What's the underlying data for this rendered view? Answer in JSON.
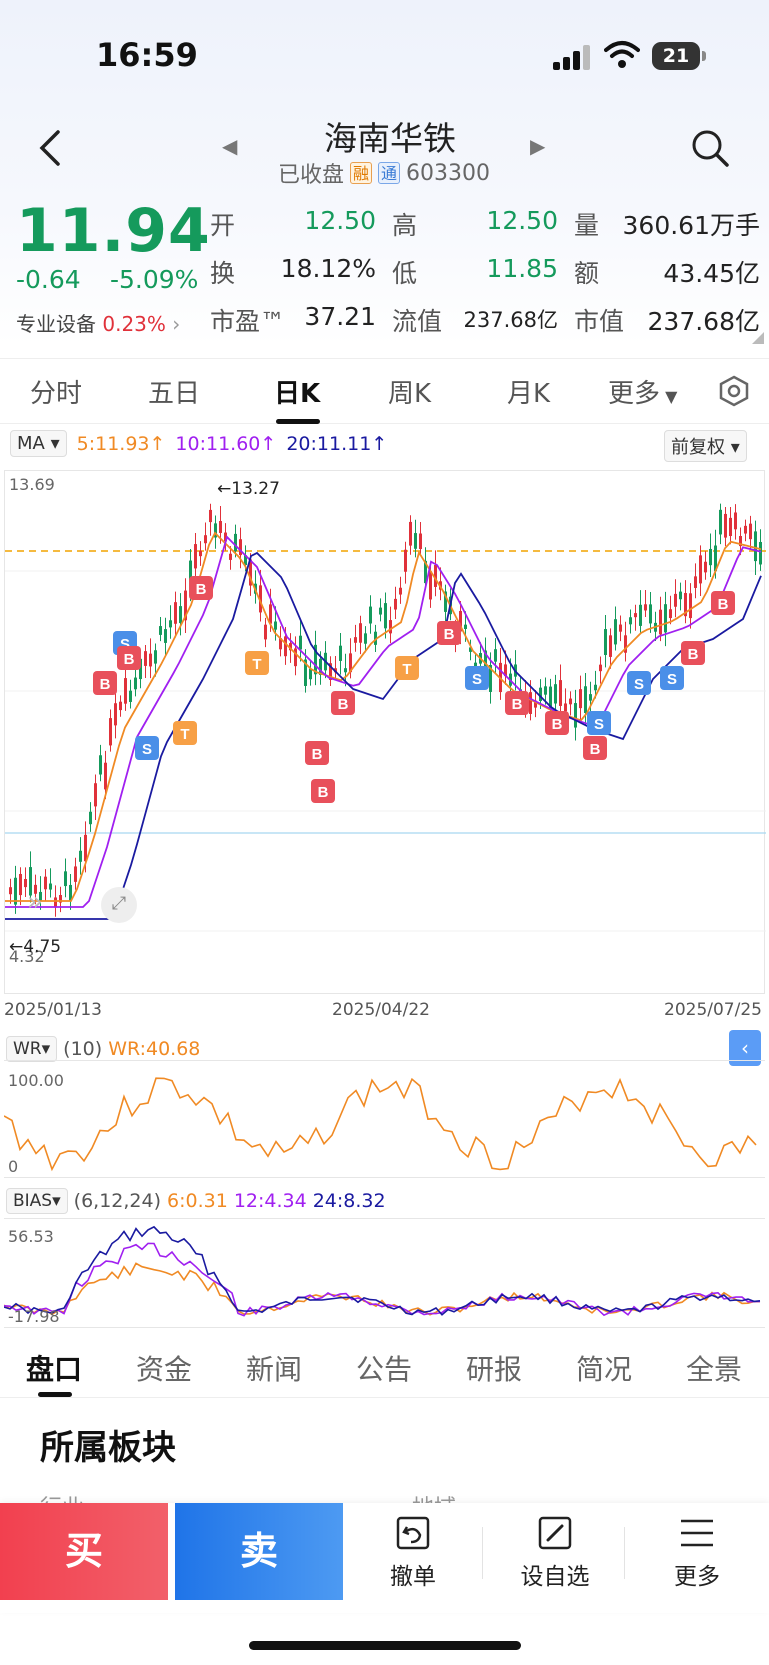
{
  "status_bar": {
    "time": "16:59",
    "battery": "21"
  },
  "header": {
    "stock_name": "海南华铁",
    "status": "已收盘",
    "tag_rong": "融",
    "tag_tong": "通",
    "code": "603300"
  },
  "quote": {
    "price": "11.94",
    "change": "-0.64",
    "change_pct": "-5.09%",
    "sector_label": "专业设备",
    "sector_pct": "0.23%",
    "open_label": "开",
    "open": "12.50",
    "high_label": "高",
    "high": "12.50",
    "volume_label": "量",
    "volume": "360.61万手",
    "turnover_label": "换",
    "turnover": "18.12%",
    "low_label": "低",
    "low": "11.85",
    "amount_label": "额",
    "amount": "43.45亿",
    "pe_label": "市盈™",
    "pe": "37.21",
    "float_label": "流值",
    "float_cap": "237.68亿",
    "mcap_label": "市值",
    "mcap": "237.68亿"
  },
  "chart_tabs": [
    "分时",
    "五日",
    "日K",
    "周K",
    "月K",
    "更多"
  ],
  "ma_legend": {
    "selector": "MA",
    "ma5": "5:11.93",
    "ma10": "10:11.60",
    "ma20": "20:11.11",
    "adjust": "前复权"
  },
  "colors": {
    "up": "#e0313a",
    "down": "#159a5c",
    "ma5": "#f08a24",
    "ma10": "#a020f0",
    "ma20": "#1a1aa0",
    "buy": "#f2404f",
    "sell": "#1f74e8"
  },
  "kline": {
    "ymax_label": "13.69",
    "ymin_label": "4.32",
    "high_marker": "13.27",
    "low_marker": "4.75",
    "dates": [
      "2025/01/13",
      "2025/04/22",
      "2025/07/25"
    ]
  },
  "wr": {
    "selector": "WR",
    "param": "(10)",
    "value": "WR:40.68",
    "top": "100.00",
    "bottom": "0"
  },
  "bias": {
    "selector": "BIAS",
    "param": "(6,12,24)",
    "v6": "6:0.31",
    "v12": "12:4.34",
    "v24": "24:8.32",
    "top": "56.53",
    "bottom": "-17.98"
  },
  "bottom_tabs": [
    "盘口",
    "资金",
    "新闻",
    "公告",
    "研报",
    "简况",
    "全景"
  ],
  "section": {
    "title": "所属板块",
    "col1": "行业",
    "col2": "地域"
  },
  "actions": {
    "buy": "买",
    "sell": "卖",
    "cancel": "撤单",
    "watch": "设自选",
    "more": "更多"
  }
}
